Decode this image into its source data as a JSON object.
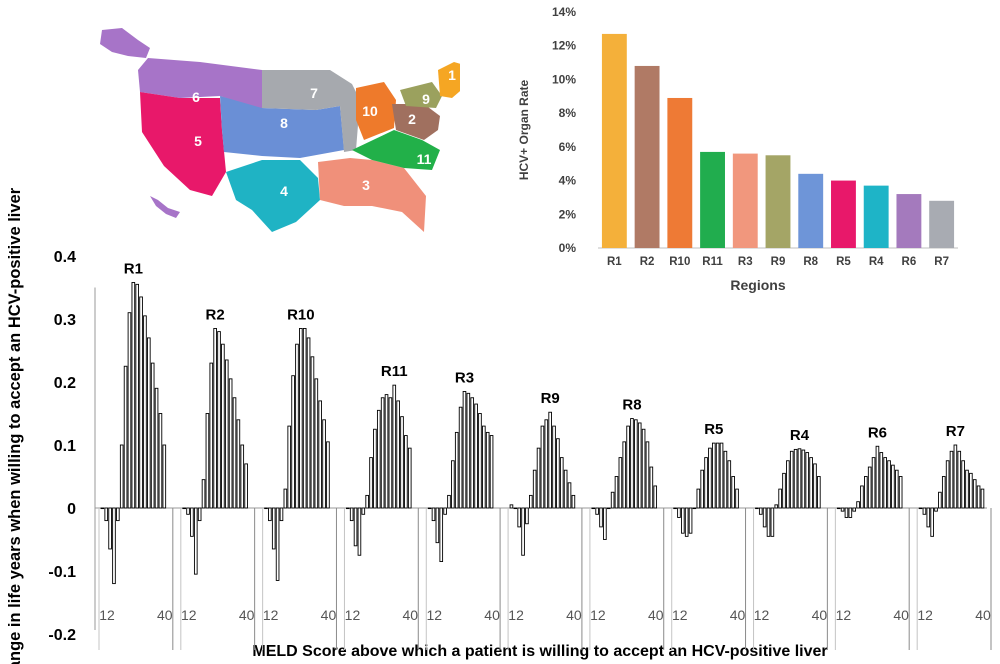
{
  "map": {
    "regions": [
      {
        "label": "1",
        "color": "#F5A623"
      },
      {
        "label": "2",
        "color": "#A0705F"
      },
      {
        "label": "3",
        "color": "#F0907A"
      },
      {
        "label": "4",
        "color": "#1FB3C4"
      },
      {
        "label": "5",
        "color": "#E8186A"
      },
      {
        "label": "6",
        "color": "#A774C8"
      },
      {
        "label": "7",
        "color": "#A6A9AE"
      },
      {
        "label": "8",
        "color": "#6A8FD6"
      },
      {
        "label": "9",
        "color": "#9BA15E"
      },
      {
        "label": "10",
        "color": "#EE7A2B"
      },
      {
        "label": "11",
        "color": "#22B049"
      }
    ]
  },
  "chart_data": [
    {
      "type": "bar",
      "ylabel": "HCV+ Organ Rate",
      "xlabel": "Regions",
      "categories": [
        "R1",
        "R2",
        "R10",
        "R11",
        "R3",
        "R9",
        "R8",
        "R5",
        "R4",
        "R6",
        "R7"
      ],
      "values": [
        12.7,
        10.8,
        8.9,
        5.7,
        5.6,
        5.5,
        4.4,
        4.0,
        3.7,
        3.2,
        2.8
      ],
      "colors": [
        "#F4B03A",
        "#B07A65",
        "#EE7A35",
        "#21AD4E",
        "#F1977D",
        "#A4A566",
        "#6E95D8",
        "#E8186A",
        "#1EB4C7",
        "#A47ABD",
        "#A8ABB2"
      ],
      "ylim": [
        0,
        14
      ],
      "yticks": [
        "0%",
        "2%",
        "4%",
        "6%",
        "8%",
        "10%",
        "12%",
        "14%"
      ],
      "grid": false
    },
    {
      "type": "bar",
      "ylabel": "Change in life years when willing to accept an HCV-positive liver",
      "xlabel": "MELD  Score above which a patient is willing to accept an HCV-positive  liver",
      "ylim": [
        -0.2,
        0.4
      ],
      "yticks": [
        "-0.2",
        "-0.1",
        "0",
        "0.1",
        "0.2",
        "0.3",
        "0.4"
      ],
      "x_range": [
        12,
        40
      ],
      "x_tick_labels": [
        "12",
        "40"
      ],
      "grid": false,
      "series": [
        {
          "name": "R1",
          "values": [
            0.0,
            -0.02,
            -0.065,
            -0.12,
            -0.02,
            0.1,
            0.225,
            0.31,
            0.358,
            0.355,
            0.335,
            0.305,
            0.27,
            0.23,
            0.19,
            0.15,
            0.1
          ]
        },
        {
          "name": "R2",
          "values": [
            0.0,
            -0.01,
            -0.045,
            -0.105,
            -0.02,
            0.045,
            0.15,
            0.23,
            0.285,
            0.28,
            0.26,
            0.235,
            0.205,
            0.175,
            0.14,
            0.1,
            0.07
          ]
        },
        {
          "name": "R10",
          "values": [
            0.0,
            -0.02,
            -0.065,
            -0.115,
            -0.02,
            0.03,
            0.13,
            0.21,
            0.26,
            0.285,
            0.285,
            0.27,
            0.24,
            0.205,
            0.17,
            0.14,
            0.105
          ]
        },
        {
          "name": "R11",
          "values": [
            0.0,
            -0.02,
            -0.06,
            -0.075,
            -0.01,
            0.02,
            0.08,
            0.125,
            0.155,
            0.175,
            0.18,
            0.175,
            0.195,
            0.17,
            0.145,
            0.115,
            0.095
          ]
        },
        {
          "name": "R3",
          "values": [
            0.0,
            -0.02,
            -0.055,
            -0.085,
            -0.01,
            0.02,
            0.075,
            0.12,
            0.16,
            0.185,
            0.182,
            0.175,
            0.165,
            0.15,
            0.13,
            0.12,
            0.115
          ]
        },
        {
          "name": "R9",
          "values": [
            0.005,
            0.0,
            -0.03,
            -0.075,
            -0.025,
            0.02,
            0.06,
            0.095,
            0.13,
            0.14,
            0.152,
            0.13,
            0.11,
            0.08,
            0.06,
            0.04,
            0.02
          ]
        },
        {
          "name": "R8",
          "values": [
            0.0,
            -0.01,
            -0.03,
            -0.05,
            0.0,
            0.025,
            0.05,
            0.08,
            0.105,
            0.13,
            0.142,
            0.14,
            0.135,
            0.125,
            0.105,
            0.065,
            0.035
          ]
        },
        {
          "name": "R5",
          "values": [
            0.0,
            -0.015,
            -0.04,
            -0.045,
            -0.04,
            0.0,
            0.03,
            0.06,
            0.08,
            0.095,
            0.103,
            0.103,
            0.103,
            0.09,
            0.075,
            0.05,
            0.03
          ]
        },
        {
          "name": "R4",
          "values": [
            0.0,
            -0.01,
            -0.03,
            -0.045,
            -0.045,
            0.005,
            0.03,
            0.055,
            0.075,
            0.09,
            0.093,
            0.094,
            0.092,
            0.088,
            0.08,
            0.07,
            0.05
          ]
        },
        {
          "name": "R6",
          "values": [
            0.0,
            -0.005,
            -0.015,
            -0.015,
            -0.005,
            0.01,
            0.035,
            0.05,
            0.065,
            0.08,
            0.098,
            0.088,
            0.08,
            0.075,
            0.068,
            0.06,
            0.05
          ]
        },
        {
          "name": "R7",
          "values": [
            0.0,
            -0.01,
            -0.03,
            -0.045,
            -0.005,
            0.025,
            0.05,
            0.075,
            0.09,
            0.1,
            0.09,
            0.075,
            0.06,
            0.055,
            0.045,
            0.035,
            0.03
          ]
        }
      ]
    }
  ]
}
